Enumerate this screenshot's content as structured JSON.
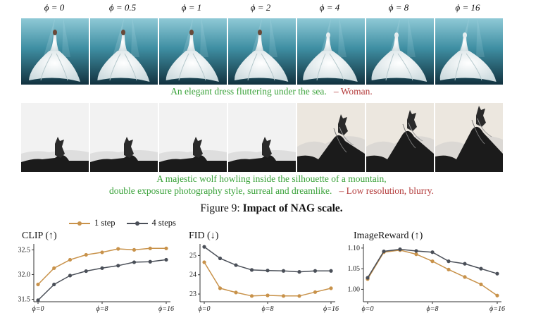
{
  "phi_labels": [
    "ϕ = 0",
    "ϕ = 0.5",
    "ϕ = 1",
    "ϕ = 2",
    "ϕ = 4",
    "ϕ = 8",
    "ϕ = 16"
  ],
  "row1": {
    "prompt": "An elegant dress fluttering under the sea.",
    "negative": "– Woman."
  },
  "row2": {
    "prompt_line1": "A majestic wolf howling inside the silhouette of a mountain,",
    "prompt_line2": "double exposure photography style, surreal and dreamlike.",
    "negative": "– Low resolution, blurry."
  },
  "figure_title_prefix": "Figure 9:",
  "figure_title_main": "Impact of NAG scale.",
  "legend": [
    {
      "label": "1 step",
      "color": "#c8924a"
    },
    {
      "label": "4 steps",
      "color": "#4a4f58"
    }
  ],
  "colors": {
    "orange": "#c8924a",
    "gray": "#4a4f58",
    "green": "#3aa23a",
    "red": "#b43c3c"
  },
  "chart_data": [
    {
      "type": "line",
      "title": "CLIP (↑)",
      "x": [
        0,
        2,
        4,
        6,
        8,
        10,
        12,
        14,
        16
      ],
      "xticks": [
        "ϕ=0",
        "ϕ=8",
        "ϕ=16"
      ],
      "yticks": [
        "31.5",
        "32.0",
        "32.5"
      ],
      "ylim": [
        31.45,
        32.62
      ],
      "series": [
        {
          "name": "1 step",
          "values": [
            31.8,
            32.13,
            32.3,
            32.4,
            32.45,
            32.52,
            32.5,
            32.53,
            32.53
          ]
        },
        {
          "name": "4 steps",
          "values": [
            31.48,
            31.8,
            31.98,
            32.07,
            32.13,
            32.18,
            32.25,
            32.26,
            32.3
          ]
        }
      ]
    },
    {
      "type": "line",
      "title": "FID (↓)",
      "x": [
        0,
        2,
        4,
        6,
        8,
        10,
        12,
        14,
        16
      ],
      "xticks": [
        "ϕ=0",
        "ϕ=8",
        "ϕ=16"
      ],
      "yticks": [
        "23",
        "24",
        "25"
      ],
      "ylim": [
        22.6,
        25.6
      ],
      "series": [
        {
          "name": "1 step",
          "values": [
            24.65,
            23.3,
            23.08,
            22.9,
            22.93,
            22.9,
            22.9,
            23.1,
            23.3
          ]
        },
        {
          "name": "4 steps",
          "values": [
            25.45,
            24.85,
            24.5,
            24.25,
            24.22,
            24.2,
            24.15,
            24.2,
            24.2
          ]
        }
      ]
    },
    {
      "type": "line",
      "title": "ImageReward (↑)",
      "x": [
        0,
        2,
        4,
        6,
        8,
        10,
        12,
        14,
        16
      ],
      "xticks": [
        "ϕ=0",
        "ϕ=8",
        "ϕ=16"
      ],
      "yticks": [
        "1.00",
        "1.05",
        "1.10"
      ],
      "ylim": [
        0.97,
        1.11
      ],
      "series": [
        {
          "name": "1 step",
          "values": [
            1.025,
            1.09,
            1.095,
            1.085,
            1.068,
            1.048,
            1.03,
            1.012,
            0.985
          ]
        },
        {
          "name": "4 steps",
          "values": [
            1.028,
            1.092,
            1.097,
            1.093,
            1.09,
            1.068,
            1.062,
            1.05,
            1.038
          ]
        }
      ]
    }
  ]
}
